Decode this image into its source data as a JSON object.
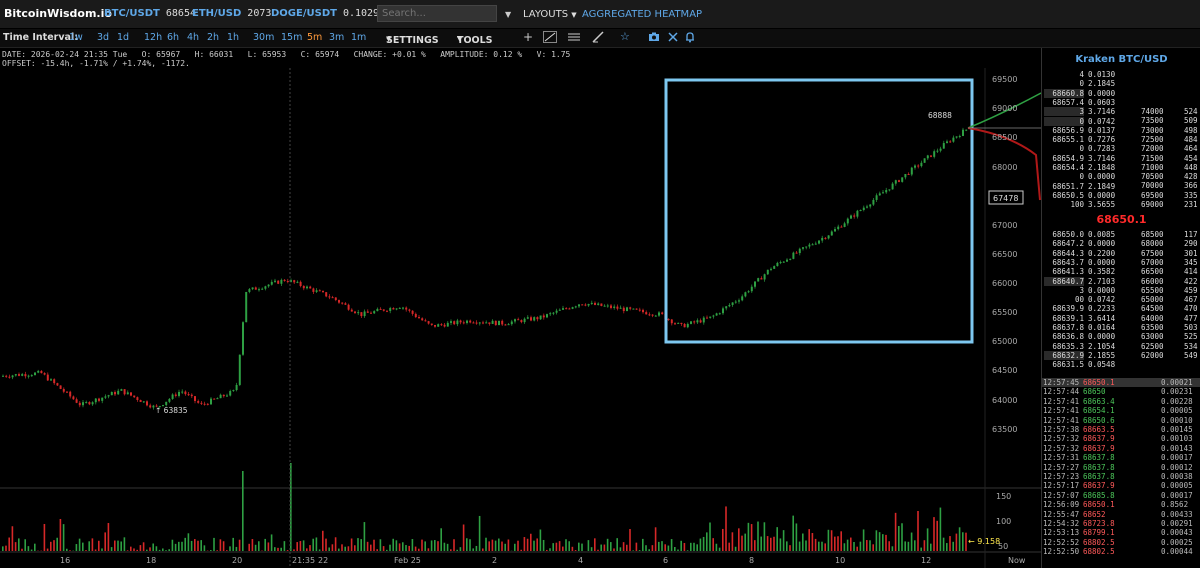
{
  "topbar": {
    "brand": "BitcoinWisdom.io",
    "tickers": [
      {
        "symbol": "BTC/USDT",
        "price": "68654"
      },
      {
        "symbol": "ETH/USD",
        "price": "2073"
      },
      {
        "symbol": "DOGE/USDT",
        "price": "0.1029"
      }
    ],
    "search_placeholder": "Search...",
    "layouts_label": "LAYOUTS",
    "heatmap_label": "AGGREGATED HEATMAP"
  },
  "toolbar": {
    "time_interval_label": "Time Interval:",
    "intervals": [
      "1w",
      "3d",
      "1d",
      "12h",
      "6h",
      "4h",
      "2h",
      "1h",
      "30m",
      "15m",
      "5m",
      "3m",
      "1m"
    ],
    "selected_interval": "5m",
    "settings_label": "SETTINGS",
    "tools_label": "TOOLS"
  },
  "info": {
    "line1": "DATE: 2026-02-24 21:35 Tue   O: 65967   H: 66031   L: 65953   C: 65974   CHANGE: +0.01 %   AMPLITUDE: 0.12 %   V: 1.75",
    "line2": "OFFSET: -15.4h, -1.71% / +1.74%, -1172."
  },
  "chart": {
    "price_axis": [
      "69500",
      "69000",
      "68500",
      "68000",
      "67500",
      "67000",
      "66500",
      "66000",
      "65500",
      "65000",
      "64500",
      "64000",
      "63500"
    ],
    "volume_axis": [
      "150",
      "100",
      "50"
    ],
    "time_axis": [
      "16",
      "18",
      "20",
      "21:35",
      "22",
      "Feb 25",
      "2",
      "4",
      "6",
      "8",
      "10",
      "12",
      "Now"
    ],
    "high_label": "68888",
    "low_label": "63835",
    "crosshair_price": "67478",
    "volume_label": "9.158"
  },
  "orderbook": {
    "title": "Kraken BTC/USD",
    "mid_price": "68650.1",
    "asks": [
      [
        "4",
        "0.0130"
      ],
      [
        "0",
        "2.1845"
      ],
      [
        "68660.8",
        "0.0000"
      ],
      [
        "68657.4",
        "0.0603"
      ],
      [
        "3",
        "3.7146"
      ],
      [
        "0",
        "0.0742"
      ],
      [
        "68656.9",
        "0.0137"
      ],
      [
        "68655.1",
        "0.7276"
      ],
      [
        "0",
        "0.7283"
      ],
      [
        "68654.9",
        "3.7146"
      ],
      [
        "68654.4",
        "2.1848"
      ],
      [
        "0",
        "0.0000"
      ],
      [
        "68651.7",
        "2.1849"
      ],
      [
        "68650.5",
        "0.0000"
      ],
      [
        "100",
        "3.5655"
      ]
    ],
    "ask_depth": [
      [
        "74000",
        "524"
      ],
      [
        "73500",
        "509"
      ],
      [
        "73000",
        "498"
      ],
      [
        "72500",
        "484"
      ],
      [
        "72000",
        "464"
      ],
      [
        "71500",
        "454"
      ],
      [
        "71000",
        "448"
      ],
      [
        "70500",
        "428"
      ],
      [
        "70000",
        "366"
      ],
      [
        "69500",
        "335"
      ],
      [
        "69000",
        "231"
      ]
    ],
    "bids": [
      [
        "68650.0",
        "0.0085"
      ],
      [
        "68647.2",
        "0.0000"
      ],
      [
        "68644.3",
        "0.2200"
      ],
      [
        "68643.7",
        "0.0000"
      ],
      [
        "68641.3",
        "0.3582"
      ],
      [
        "68640.7",
        "2.7103"
      ],
      [
        "3",
        "0.0000"
      ],
      [
        "00",
        "0.0742"
      ],
      [
        "68639.9",
        "0.2233"
      ],
      [
        "68639.1",
        "3.6414"
      ],
      [
        "68637.8",
        "0.0164"
      ],
      [
        "68636.8",
        "0.0000"
      ],
      [
        "68635.3",
        "2.1054"
      ],
      [
        "68632.9",
        "2.1855"
      ],
      [
        "68631.5",
        "0.0548"
      ]
    ],
    "bid_depth": [
      [
        "68500",
        "117"
      ],
      [
        "68000",
        "290"
      ],
      [
        "67500",
        "301"
      ],
      [
        "67000",
        "345"
      ],
      [
        "66500",
        "414"
      ],
      [
        "66000",
        "422"
      ],
      [
        "65500",
        "459"
      ],
      [
        "65000",
        "467"
      ],
      [
        "64500",
        "470"
      ],
      [
        "64000",
        "477"
      ],
      [
        "63500",
        "503"
      ],
      [
        "63000",
        "525"
      ],
      [
        "62500",
        "534"
      ],
      [
        "62000",
        "549"
      ]
    ]
  },
  "trades": [
    [
      "12:57:45",
      "68650.1",
      "0.00021",
      "sell"
    ],
    [
      "12:57:44",
      "68650",
      "0.00231",
      "buy"
    ],
    [
      "12:57:41",
      "68663.4",
      "0.00228",
      "buy"
    ],
    [
      "12:57:41",
      "68654.1",
      "0.00005",
      "buy"
    ],
    [
      "12:57:41",
      "68650.6",
      "0.00010",
      "buy"
    ],
    [
      "12:57:38",
      "68663.5",
      "0.00145",
      "sell"
    ],
    [
      "12:57:32",
      "68637.9",
      "0.00103",
      "sell"
    ],
    [
      "12:57:32",
      "68637.9",
      "0.00143",
      "sell"
    ],
    [
      "12:57:31",
      "68637.8",
      "0.00017",
      "buy"
    ],
    [
      "12:57:27",
      "68637.8",
      "0.00012",
      "buy"
    ],
    [
      "12:57:23",
      "68637.8",
      "0.00038",
      "buy"
    ],
    [
      "12:57:17",
      "68637.9",
      "0.00005",
      "sell"
    ],
    [
      "12:57:07",
      "68685.8",
      "0.00017",
      "buy"
    ],
    [
      "12:56:09",
      "68650.1",
      "0.8562",
      "sell"
    ],
    [
      "12:55:47",
      "68652",
      "0.00433",
      "sell"
    ],
    [
      "12:54:32",
      "68723.8",
      "0.00291",
      "sell"
    ],
    [
      "12:53:13",
      "68799.1",
      "0.00043",
      "sell"
    ],
    [
      "12:52:52",
      "68802.5",
      "0.00025",
      "sell"
    ],
    [
      "12:52:50",
      "68802.5",
      "0.00044",
      "sell"
    ]
  ]
}
